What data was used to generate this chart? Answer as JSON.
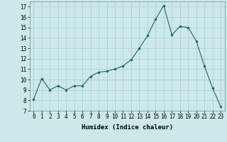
{
  "x": [
    0,
    1,
    2,
    3,
    4,
    5,
    6,
    7,
    8,
    9,
    10,
    11,
    12,
    13,
    14,
    15,
    16,
    17,
    18,
    19,
    20,
    21,
    22,
    23
  ],
  "y": [
    8.1,
    10.1,
    9.0,
    9.4,
    9.0,
    9.4,
    9.4,
    10.3,
    10.7,
    10.8,
    11.0,
    11.3,
    11.9,
    13.0,
    14.2,
    15.8,
    17.1,
    14.3,
    15.1,
    15.0,
    13.7,
    11.3,
    9.2,
    7.4
  ],
  "xlabel": "Humidex (Indice chaleur)",
  "ylim": [
    7,
    17.5
  ],
  "xlim": [
    -0.5,
    23.5
  ],
  "yticks": [
    7,
    8,
    9,
    10,
    11,
    12,
    13,
    14,
    15,
    16,
    17
  ],
  "xticks": [
    0,
    1,
    2,
    3,
    4,
    5,
    6,
    7,
    8,
    9,
    10,
    11,
    12,
    13,
    14,
    15,
    16,
    17,
    18,
    19,
    20,
    21,
    22,
    23
  ],
  "line_color": "#1a6b5a",
  "marker_color": "#1a6b5a",
  "bg_color": "#cce8e8",
  "grid_color": "#aacfcf",
  "label_fontsize": 6.5,
  "tick_fontsize": 5.5
}
